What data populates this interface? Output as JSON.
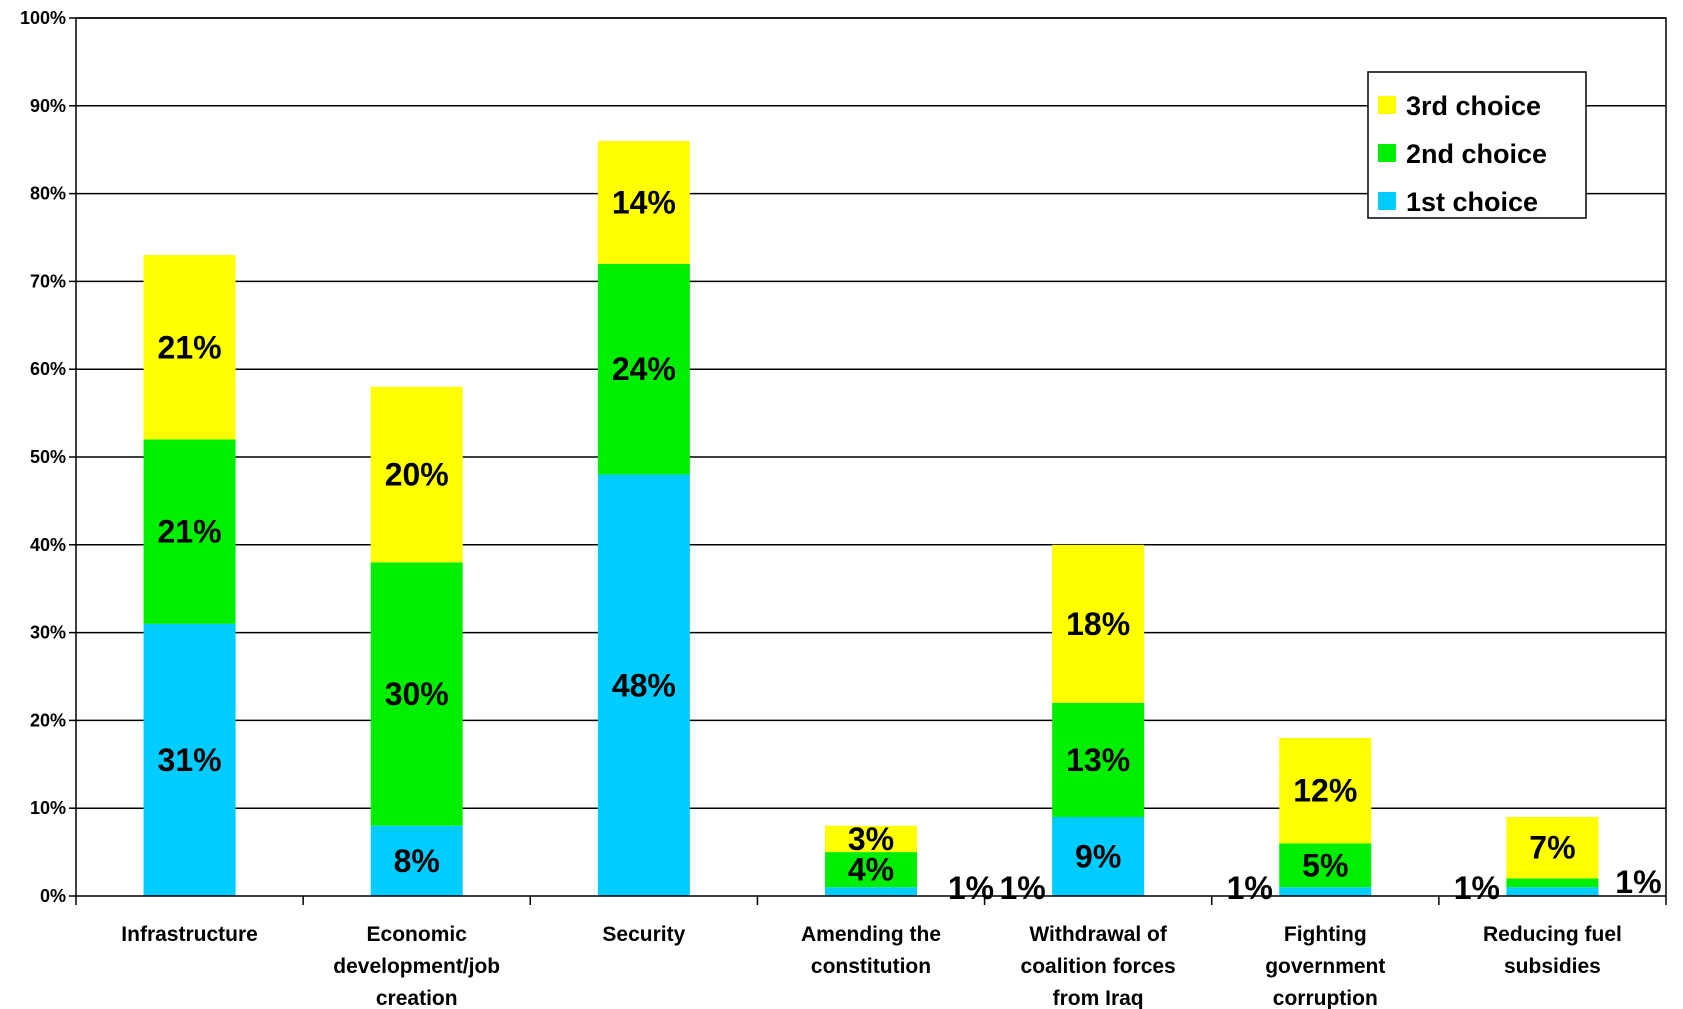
{
  "chart_data": {
    "type": "bar",
    "stacked": true,
    "categories": [
      "Infrastructure",
      "Economic development/job creation",
      "Security",
      "Amending the constitution",
      "Withdrawal of coalition forces from Iraq",
      "Fighting government corruption",
      "Reducing fuel subsidies"
    ],
    "category_lines": [
      [
        "Infrastructure"
      ],
      [
        "Economic",
        "development/job",
        "creation"
      ],
      [
        "Security"
      ],
      [
        "Amending the",
        "constitution"
      ],
      [
        "Withdrawal of",
        "coalition forces",
        "from Iraq"
      ],
      [
        "Fighting",
        "government",
        "corruption"
      ],
      [
        "Reducing fuel",
        "subsidies"
      ]
    ],
    "series": [
      {
        "name": "1st choice",
        "color": "#00CCFF",
        "values": [
          31,
          8,
          48,
          1,
          9,
          1,
          1
        ],
        "labels": [
          "31%",
          "8%",
          "48%",
          "",
          "9%",
          "",
          ""
        ]
      },
      {
        "name": "2nd choice",
        "color": "#00EE00",
        "values": [
          21,
          30,
          24,
          4,
          13,
          5,
          1
        ],
        "labels": [
          "21%",
          "30%",
          "24%",
          "4%",
          "13%",
          "5%",
          ""
        ]
      },
      {
        "name": "3rd choice",
        "color": "#FFFF00",
        "values": [
          21,
          20,
          14,
          3,
          18,
          12,
          7
        ],
        "labels": [
          "21%",
          "20%",
          "14%",
          "3%",
          "18%",
          "12%",
          "7%"
        ]
      }
    ],
    "outside_labels": [
      {
        "category_index": 3,
        "text": "1%"
      },
      {
        "category_index": 4,
        "text": "1%"
      },
      {
        "category_index": 5,
        "text": "1%"
      },
      {
        "category_index": 6,
        "text": "1%"
      }
    ],
    "y_ticks": [
      "0%",
      "10%",
      "20%",
      "30%",
      "40%",
      "50%",
      "60%",
      "70%",
      "80%",
      "90%",
      "100%"
    ],
    "ylim": [
      0,
      100
    ],
    "grid": true,
    "legend": {
      "placement": "top-right",
      "order": [
        "3rd choice",
        "2nd choice",
        "1st choice"
      ]
    },
    "title": "",
    "xlabel": "",
    "ylabel": ""
  }
}
